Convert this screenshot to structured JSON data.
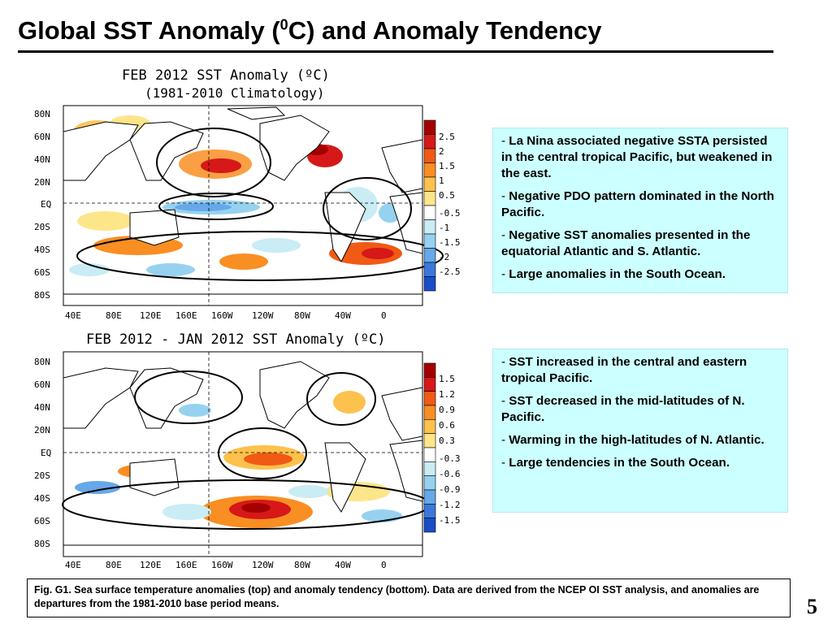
{
  "slide": {
    "title_part1": "Global SST Anomaly (",
    "title_sup": "0",
    "title_part2": "C) and Anomaly Tendency",
    "page_number": "5"
  },
  "top_map": {
    "title_line1": "FEB 2012 SST Anomaly (ºC)",
    "title_line2": "(1981-2010 Climatology)",
    "lat_labels": [
      "80N",
      "60N",
      "40N",
      "20N",
      "EQ",
      "20S",
      "40S",
      "60S",
      "80S"
    ],
    "lon_labels": [
      "40E",
      "80E",
      "120E",
      "160E",
      "160W",
      "120W",
      "80W",
      "40W",
      "0"
    ],
    "colorbar_labels": [
      "2.5",
      "2",
      "1.5",
      "1",
      "0.5",
      "-0.5",
      "-1",
      "-1.5",
      "-2",
      "-2.5"
    ],
    "colorbar_colors": [
      "#a50000",
      "#d61818",
      "#f05a14",
      "#f98e22",
      "#fdc14d",
      "#fde58a",
      "#ffffff",
      "#c9ecf5",
      "#96d2f0",
      "#66a8e9",
      "#3c78dc",
      "#1a4ec8"
    ]
  },
  "bottom_map": {
    "title_line1": "FEB 2012 - JAN 2012 SST Anomaly (ºC)",
    "lat_labels": [
      "80N",
      "60N",
      "40N",
      "20N",
      "EQ",
      "20S",
      "40S",
      "60S",
      "80S"
    ],
    "lon_labels": [
      "40E",
      "80E",
      "120E",
      "160E",
      "160W",
      "120W",
      "80W",
      "40W",
      "0"
    ],
    "colorbar_labels": [
      "1.5",
      "1.2",
      "0.9",
      "0.6",
      "0.3",
      "-0.3",
      "-0.6",
      "-0.9",
      "-1.2",
      "-1.5"
    ],
    "colorbar_colors": [
      "#a50000",
      "#d61818",
      "#f05a14",
      "#f98e22",
      "#fdc14d",
      "#fde58a",
      "#ffffff",
      "#c9ecf5",
      "#96d2f0",
      "#66a8e9",
      "#3c78dc",
      "#1a4ec8"
    ]
  },
  "top_bullets": [
    "La Nina associated negative SSTA persisted in the central tropical Pacific, but weakened in the east.",
    "Negative PDO pattern dominated in the North Pacific.",
    "Negative SST anomalies presented in the equatorial Atlantic and S. Atlantic.",
    "Large anomalies in the South Ocean."
  ],
  "bottom_bullets": [
    "SST increased in the central and eastern tropical Pacific.",
    "SST decreased in the mid-latitudes of N. Pacific.",
    "Warming in the high-latitudes of N. Atlantic.",
    "Large tendencies in the South Ocean."
  ],
  "bullet_dash": "-",
  "caption": "Fig. G1. Sea surface temperature anomalies (top) and anomaly tendency (bottom). Data are derived from the NCEP OI SST analysis, and anomalies are departures from the 1981-2010 base period means."
}
